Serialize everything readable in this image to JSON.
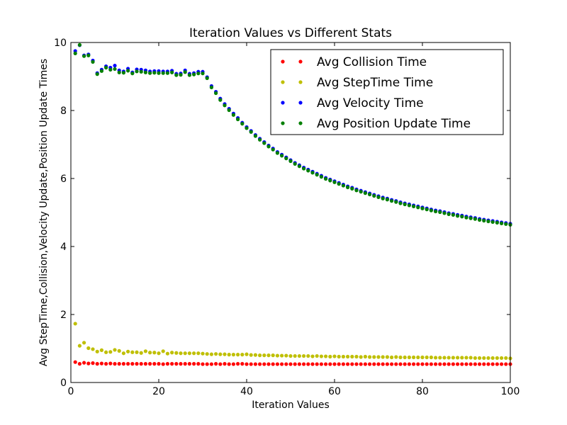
{
  "chart_data": {
    "type": "scatter",
    "title": "Iteration Values vs Different Stats",
    "xlabel": "Iteration Values",
    "ylabel": "Avg StepTime,Collision,Velocity Update,Position Update Times",
    "xlim": [
      0,
      100
    ],
    "ylim": [
      0,
      10
    ],
    "xticks": [
      0,
      20,
      40,
      60,
      80,
      100
    ],
    "yticks": [
      0,
      2,
      4,
      6,
      8,
      10
    ],
    "grid": false,
    "legend_position": "top-right",
    "x": [
      1,
      2,
      3,
      4,
      5,
      6,
      7,
      8,
      9,
      10,
      11,
      12,
      13,
      14,
      15,
      16,
      17,
      18,
      19,
      20,
      21,
      22,
      23,
      24,
      25,
      26,
      27,
      28,
      29,
      30,
      31,
      32,
      33,
      34,
      35,
      36,
      37,
      38,
      39,
      40,
      41,
      42,
      43,
      44,
      45,
      46,
      47,
      48,
      49,
      50,
      51,
      52,
      53,
      54,
      55,
      56,
      57,
      58,
      59,
      60,
      61,
      62,
      63,
      64,
      65,
      66,
      67,
      68,
      69,
      70,
      71,
      72,
      73,
      74,
      75,
      76,
      77,
      78,
      79,
      80,
      81,
      82,
      83,
      84,
      85,
      86,
      87,
      88,
      89,
      90,
      91,
      92,
      93,
      94,
      95,
      96,
      97,
      98,
      99,
      100
    ],
    "series": [
      {
        "name": "Avg Collision Time",
        "color": "#ff0000",
        "values": [
          0.6,
          0.55,
          0.58,
          0.56,
          0.57,
          0.55,
          0.56,
          0.55,
          0.56,
          0.55,
          0.55,
          0.55,
          0.55,
          0.55,
          0.55,
          0.55,
          0.55,
          0.55,
          0.55,
          0.55,
          0.54,
          0.55,
          0.55,
          0.55,
          0.55,
          0.55,
          0.55,
          0.55,
          0.55,
          0.54,
          0.54,
          0.54,
          0.55,
          0.54,
          0.55,
          0.54,
          0.54,
          0.55,
          0.55,
          0.54,
          0.54,
          0.54,
          0.54,
          0.54,
          0.54,
          0.54,
          0.54,
          0.54,
          0.54,
          0.54,
          0.54,
          0.54,
          0.54,
          0.54,
          0.54,
          0.54,
          0.54,
          0.54,
          0.54,
          0.54,
          0.54,
          0.54,
          0.54,
          0.54,
          0.54,
          0.54,
          0.54,
          0.54,
          0.54,
          0.54,
          0.54,
          0.54,
          0.54,
          0.54,
          0.54,
          0.54,
          0.54,
          0.54,
          0.54,
          0.54,
          0.54,
          0.54,
          0.54,
          0.54,
          0.54,
          0.54,
          0.54,
          0.54,
          0.54,
          0.54,
          0.54,
          0.54,
          0.54,
          0.54,
          0.54,
          0.54,
          0.54,
          0.54,
          0.54,
          0.54
        ]
      },
      {
        "name": "Avg StepTime Time",
        "color": "#bfbf00",
        "values": [
          1.73,
          1.08,
          1.17,
          1.01,
          0.98,
          0.91,
          0.95,
          0.89,
          0.9,
          0.96,
          0.93,
          0.86,
          0.91,
          0.89,
          0.89,
          0.87,
          0.92,
          0.88,
          0.88,
          0.86,
          0.92,
          0.85,
          0.88,
          0.87,
          0.86,
          0.86,
          0.86,
          0.86,
          0.86,
          0.85,
          0.84,
          0.83,
          0.84,
          0.83,
          0.83,
          0.82,
          0.82,
          0.82,
          0.82,
          0.83,
          0.81,
          0.81,
          0.8,
          0.8,
          0.8,
          0.8,
          0.79,
          0.79,
          0.79,
          0.78,
          0.78,
          0.78,
          0.78,
          0.78,
          0.77,
          0.78,
          0.77,
          0.77,
          0.76,
          0.77,
          0.76,
          0.76,
          0.76,
          0.76,
          0.76,
          0.75,
          0.76,
          0.75,
          0.75,
          0.75,
          0.75,
          0.75,
          0.74,
          0.75,
          0.74,
          0.74,
          0.74,
          0.74,
          0.74,
          0.74,
          0.74,
          0.74,
          0.73,
          0.73,
          0.73,
          0.73,
          0.73,
          0.73,
          0.73,
          0.73,
          0.73,
          0.72,
          0.72,
          0.72,
          0.72,
          0.72,
          0.72,
          0.72,
          0.72,
          0.71
        ]
      },
      {
        "name": "Avg Velocity Time",
        "color": "#0000ff",
        "values": [
          9.75,
          9.92,
          9.62,
          9.65,
          9.47,
          9.1,
          9.2,
          9.3,
          9.26,
          9.32,
          9.18,
          9.15,
          9.23,
          9.12,
          9.21,
          9.2,
          9.18,
          9.15,
          9.16,
          9.16,
          9.15,
          9.15,
          9.17,
          9.08,
          9.09,
          9.18,
          9.08,
          9.1,
          9.14,
          9.14,
          8.98,
          8.72,
          8.55,
          8.35,
          8.19,
          8.05,
          7.91,
          7.78,
          7.64,
          7.51,
          7.4,
          7.28,
          7.17,
          7.07,
          6.97,
          6.88,
          6.78,
          6.7,
          6.62,
          6.54,
          6.46,
          6.39,
          6.32,
          6.26,
          6.2,
          6.14,
          6.08,
          6.02,
          5.97,
          5.92,
          5.87,
          5.82,
          5.77,
          5.73,
          5.68,
          5.64,
          5.6,
          5.56,
          5.52,
          5.48,
          5.44,
          5.41,
          5.37,
          5.34,
          5.3,
          5.27,
          5.24,
          5.21,
          5.18,
          5.15,
          5.12,
          5.09,
          5.06,
          5.04,
          5.01,
          4.98,
          4.96,
          4.93,
          4.91,
          4.88,
          4.86,
          4.84,
          4.81,
          4.79,
          4.77,
          4.75,
          4.73,
          4.71,
          4.69,
          4.67
        ]
      },
      {
        "name": "Avg Position Update Time",
        "color": "#007f00",
        "values": [
          9.68,
          9.93,
          9.6,
          9.62,
          9.43,
          9.07,
          9.16,
          9.26,
          9.2,
          9.22,
          9.12,
          9.11,
          9.17,
          9.09,
          9.15,
          9.14,
          9.12,
          9.1,
          9.11,
          9.1,
          9.1,
          9.1,
          9.12,
          9.04,
          9.05,
          9.13,
          9.04,
          9.06,
          9.09,
          9.09,
          8.95,
          8.68,
          8.51,
          8.31,
          8.15,
          8.01,
          7.87,
          7.74,
          7.61,
          7.48,
          7.37,
          7.25,
          7.14,
          7.04,
          6.94,
          6.85,
          6.75,
          6.67,
          6.59,
          6.51,
          6.43,
          6.36,
          6.29,
          6.23,
          6.17,
          6.11,
          6.05,
          5.99,
          5.94,
          5.89,
          5.84,
          5.79,
          5.74,
          5.7,
          5.65,
          5.61,
          5.57,
          5.53,
          5.49,
          5.45,
          5.41,
          5.38,
          5.34,
          5.31,
          5.27,
          5.24,
          5.21,
          5.18,
          5.15,
          5.12,
          5.09,
          5.06,
          5.03,
          5.01,
          4.98,
          4.95,
          4.93,
          4.9,
          4.88,
          4.85,
          4.83,
          4.81,
          4.78,
          4.76,
          4.74,
          4.72,
          4.7,
          4.68,
          4.66,
          4.64
        ]
      }
    ]
  }
}
